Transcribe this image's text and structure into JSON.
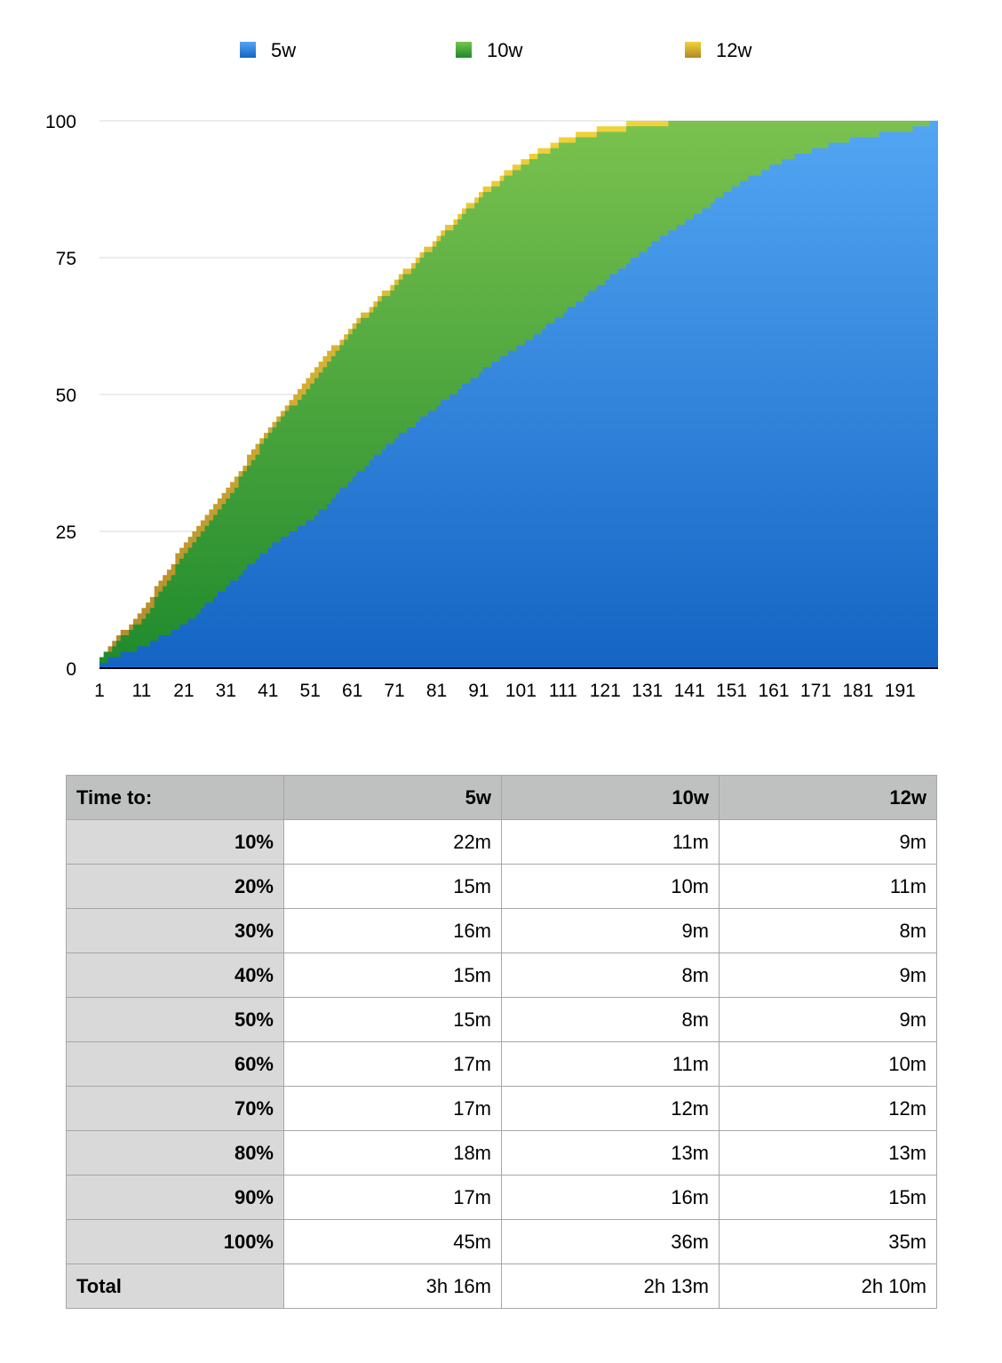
{
  "chart_data": {
    "type": "area",
    "stacked": true,
    "series": [
      {
        "name": "5w",
        "color_top": "#53a6f3",
        "color_bottom": "#1464c4",
        "points": [
          [
            1,
            1
          ],
          [
            11,
            4
          ],
          [
            21,
            8
          ],
          [
            31,
            15
          ],
          [
            41,
            22
          ],
          [
            51,
            27
          ],
          [
            61,
            35
          ],
          [
            71,
            42
          ],
          [
            81,
            48
          ],
          [
            91,
            54
          ],
          [
            101,
            59
          ],
          [
            111,
            65
          ],
          [
            121,
            71
          ],
          [
            131,
            77
          ],
          [
            141,
            82
          ],
          [
            151,
            88
          ],
          [
            161,
            92
          ],
          [
            171,
            95
          ],
          [
            181,
            97
          ],
          [
            191,
            98
          ],
          [
            200,
            100
          ]
        ]
      },
      {
        "name": "10w",
        "color_top": "#7bc24f",
        "color_bottom": "#1f8a2c",
        "points": [
          [
            1,
            2
          ],
          [
            11,
            9
          ],
          [
            21,
            21
          ],
          [
            31,
            31
          ],
          [
            41,
            43
          ],
          [
            51,
            52
          ],
          [
            61,
            62
          ],
          [
            71,
            70
          ],
          [
            81,
            78
          ],
          [
            91,
            86
          ],
          [
            101,
            92
          ],
          [
            111,
            96
          ],
          [
            121,
            98
          ],
          [
            131,
            99
          ],
          [
            141,
            100
          ],
          [
            200,
            100
          ]
        ]
      },
      {
        "name": "12w",
        "color_top": "#f2d23a",
        "color_bottom": "#b0892a",
        "points": [
          [
            1,
            2
          ],
          [
            11,
            11
          ],
          [
            21,
            23
          ],
          [
            31,
            33
          ],
          [
            41,
            44
          ],
          [
            51,
            54
          ],
          [
            61,
            63
          ],
          [
            71,
            71
          ],
          [
            81,
            79
          ],
          [
            91,
            87
          ],
          [
            101,
            93
          ],
          [
            111,
            97
          ],
          [
            121,
            99
          ],
          [
            131,
            100
          ],
          [
            200,
            100
          ]
        ]
      }
    ],
    "x_ticks": [
      "1",
      "11",
      "21",
      "31",
      "41",
      "51",
      "61",
      "71",
      "81",
      "91",
      "101",
      "111",
      "121",
      "131",
      "141",
      "151",
      "161",
      "171",
      "181",
      "191"
    ],
    "xlim": [
      1,
      200
    ],
    "y_ticks": [
      "0",
      "25",
      "50",
      "75",
      "100"
    ],
    "ylim": [
      0,
      100
    ],
    "grid": true,
    "legend_position": "top-center",
    "title": "",
    "xlabel": "",
    "ylabel": ""
  },
  "table": {
    "header": [
      "Time to:",
      "5w",
      "10w",
      "12w"
    ],
    "rows": [
      {
        "label": "10%",
        "values": [
          "22m",
          "11m",
          "9m"
        ]
      },
      {
        "label": "20%",
        "values": [
          "15m",
          "10m",
          "11m"
        ]
      },
      {
        "label": "30%",
        "values": [
          "16m",
          "9m",
          "8m"
        ]
      },
      {
        "label": "40%",
        "values": [
          "15m",
          "8m",
          "9m"
        ]
      },
      {
        "label": "50%",
        "values": [
          "15m",
          "8m",
          "9m"
        ]
      },
      {
        "label": "60%",
        "values": [
          "17m",
          "11m",
          "10m"
        ]
      },
      {
        "label": "70%",
        "values": [
          "17m",
          "12m",
          "12m"
        ]
      },
      {
        "label": "80%",
        "values": [
          "18m",
          "13m",
          "13m"
        ]
      },
      {
        "label": "90%",
        "values": [
          "17m",
          "16m",
          "15m"
        ]
      },
      {
        "label": "100%",
        "values": [
          "45m",
          "36m",
          "35m"
        ]
      },
      {
        "label": "Total",
        "values": [
          "3h 16m",
          "2h 13m",
          "2h 10m"
        ]
      }
    ]
  }
}
